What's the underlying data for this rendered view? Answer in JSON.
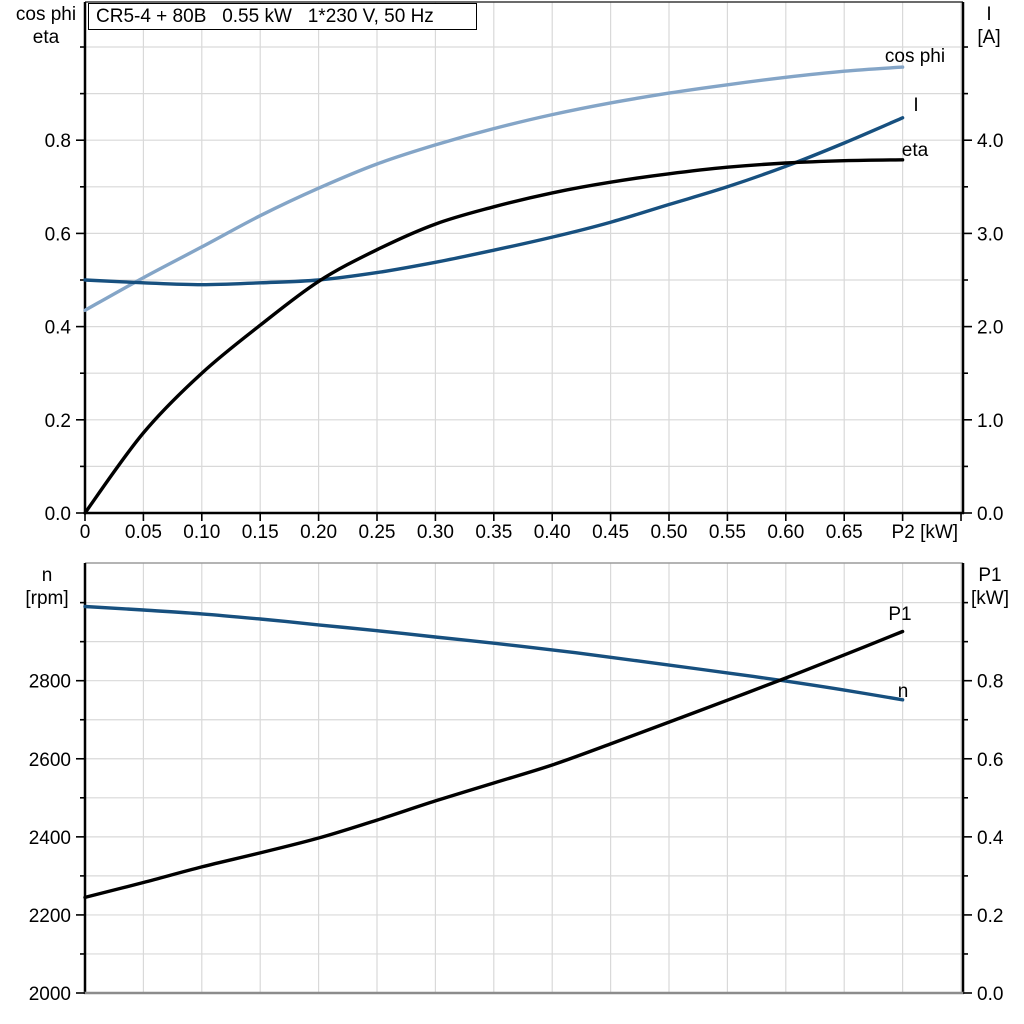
{
  "header": {
    "title": "CR5-4 + 80B   0.55 kW   1*230 V, 50 Hz"
  },
  "colors": {
    "black": "#000000",
    "dark_blue": "#17507f",
    "light_blue": "#84a5c7",
    "grid": "#d9d9d9",
    "axis_gray": "#8c8c8c",
    "frame_gray": "#9b9b9b",
    "frame_dark": "#3a3a3a"
  },
  "chart_data": [
    {
      "id": "motor-electrical-curves",
      "type": "line",
      "title": "",
      "left_axis_title_lines": [
        "cos phi",
        "eta"
      ],
      "right_axis_title_lines": [
        "I",
        "[A]"
      ],
      "x_axis_unit_label": "P2 [kW]",
      "x_axis_unit_label_at": 0.719,
      "xlim": [
        0,
        0.7517
      ],
      "ylim_left": [
        0,
        1.0966
      ],
      "ylim_right": [
        0,
        5.483
      ],
      "grid": true,
      "show_x_ticks": true,
      "x_ticks": {
        "values": [
          0,
          0.05,
          0.1,
          0.15,
          0.2,
          0.25,
          0.3,
          0.35,
          0.4,
          0.45,
          0.5,
          0.55,
          0.6,
          0.65,
          0.7,
          0.75
        ],
        "labels": [
          "0",
          "0.05",
          "0.10",
          "0.15",
          "0.20",
          "0.25",
          "0.30",
          "0.35",
          "0.40",
          "0.45",
          "0.50",
          "0.55",
          "0.60",
          "0.65",
          "",
          ""
        ]
      },
      "left_ticks": {
        "values": [
          0,
          0.1,
          0.2,
          0.3,
          0.4,
          0.5,
          0.6,
          0.7,
          0.8,
          0.9,
          1.0
        ],
        "labels": [
          "0.0",
          "",
          "0.2",
          "",
          "0.4",
          "",
          "0.6",
          "",
          "0.8",
          "",
          ""
        ]
      },
      "right_ticks": {
        "values": [
          0,
          0.5,
          1.0,
          1.5,
          2.0,
          2.5,
          3.0,
          3.5,
          4.0,
          4.5,
          5.0
        ],
        "labels": [
          "0.0",
          "",
          "1.0",
          "",
          "2.0",
          "",
          "3.0",
          "",
          "4.0",
          "",
          ""
        ]
      },
      "x": [
        0,
        0.05,
        0.1,
        0.15,
        0.2,
        0.25,
        0.3,
        0.35,
        0.4,
        0.45,
        0.5,
        0.55,
        0.6,
        0.65,
        0.7
      ],
      "series": [
        {
          "name": "cos phi",
          "axis": "left",
          "color": "light_blue",
          "values": [
            0.435,
            0.505,
            0.571,
            0.638,
            0.697,
            0.749,
            0.79,
            0.825,
            0.855,
            0.88,
            0.901,
            0.919,
            0.935,
            0.948,
            0.957
          ]
        },
        {
          "name": "I",
          "axis": "right",
          "color": "dark_blue",
          "values": [
            2.5,
            2.47,
            2.45,
            2.47,
            2.5,
            2.58,
            2.69,
            2.82,
            2.96,
            3.12,
            3.31,
            3.5,
            3.72,
            3.97,
            4.24
          ]
        },
        {
          "name": "eta",
          "axis": "left",
          "color": "black",
          "values": [
            0.0,
            0.172,
            0.3,
            0.403,
            0.497,
            0.565,
            0.62,
            0.657,
            0.687,
            0.71,
            0.728,
            0.742,
            0.751,
            0.756,
            0.758
          ]
        }
      ]
    },
    {
      "id": "speed-power-curves",
      "type": "line",
      "title": "",
      "left_axis_title_lines": [
        "n",
        "[rpm]"
      ],
      "right_axis_title_lines": [
        "P1",
        "[kW]"
      ],
      "x_axis_unit_label": "",
      "xlim": [
        0,
        0.7517
      ],
      "ylim_left": [
        2000,
        3101.5
      ],
      "ylim_right": [
        0,
        1.1015
      ],
      "grid": true,
      "show_x_ticks": false,
      "x_ticks": {
        "values": [
          0,
          0.05,
          0.1,
          0.15,
          0.2,
          0.25,
          0.3,
          0.35,
          0.4,
          0.45,
          0.5,
          0.55,
          0.6,
          0.65,
          0.7,
          0.75
        ],
        "labels": [
          "",
          "",
          "",
          "",
          "",
          "",
          "",
          "",
          "",
          "",
          "",
          "",
          "",
          "",
          "",
          ""
        ]
      },
      "left_ticks": {
        "values": [
          2000,
          2100,
          2200,
          2300,
          2400,
          2500,
          2600,
          2700,
          2800,
          2900,
          3000
        ],
        "labels": [
          "2000",
          "",
          "2200",
          "",
          "2400",
          "",
          "2600",
          "",
          "2800",
          "",
          ""
        ]
      },
      "right_ticks": {
        "values": [
          0,
          0.1,
          0.2,
          0.3,
          0.4,
          0.5,
          0.6,
          0.7,
          0.8,
          0.9,
          1.0
        ],
        "labels": [
          "0.0",
          "",
          "0.2",
          "",
          "0.4",
          "",
          "0.6",
          "",
          "0.8",
          "",
          ""
        ]
      },
      "x": [
        0,
        0.05,
        0.1,
        0.15,
        0.2,
        0.25,
        0.3,
        0.35,
        0.4,
        0.45,
        0.5,
        0.55,
        0.6,
        0.65,
        0.7
      ],
      "series": [
        {
          "name": "n",
          "axis": "left",
          "color": "dark_blue",
          "values": [
            2990,
            2981,
            2971,
            2958,
            2943,
            2928,
            2912,
            2896,
            2879,
            2860,
            2840,
            2820,
            2799,
            2776,
            2751
          ]
        },
        {
          "name": "P1",
          "axis": "right",
          "color": "black",
          "values": [
            0.245,
            0.283,
            0.323,
            0.359,
            0.397,
            0.443,
            0.492,
            0.538,
            0.584,
            0.638,
            0.694,
            0.75,
            0.807,
            0.866,
            0.926
          ]
        }
      ]
    }
  ]
}
